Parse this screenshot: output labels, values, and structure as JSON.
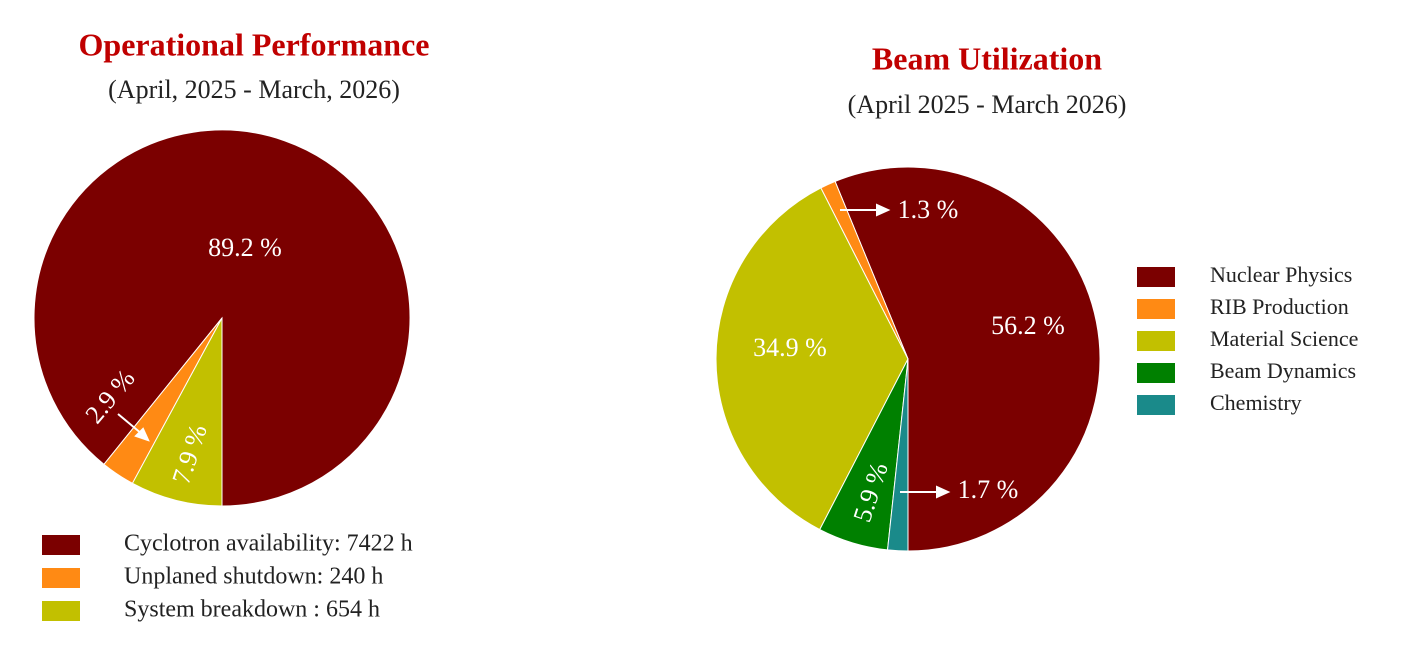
{
  "chart_data": [
    {
      "type": "pie",
      "title": "Operational Performance",
      "subtitle": "(April, 2025 - March, 2026)",
      "categories": [
        "Cyclotron availability: 7422 h",
        "Unplaned shutdown: 240 h",
        "System breakdown : 654 h"
      ],
      "values": [
        89.2,
        2.9,
        7.9
      ],
      "value_labels": [
        "89.2 %",
        "2.9 %",
        "7.9 %"
      ],
      "colors": [
        "#7b0000",
        "#ff8a14",
        "#c2c000"
      ]
    },
    {
      "type": "pie",
      "title": "Beam Utilization",
      "subtitle": "(April 2025 - March 2026)",
      "categories": [
        "Nuclear Physics",
        "RIB Production",
        "Material Science",
        "Beam Dynamics",
        "Chemistry"
      ],
      "values": [
        56.2,
        1.3,
        34.9,
        5.9,
        1.7
      ],
      "value_labels": [
        "56.2 %",
        "1.3 %",
        "34.9 %",
        "5.9 %",
        "1.7 %"
      ],
      "colors": [
        "#7b0000",
        "#ff8a14",
        "#c2c000",
        "#008000",
        "#1a8a8a"
      ]
    }
  ]
}
